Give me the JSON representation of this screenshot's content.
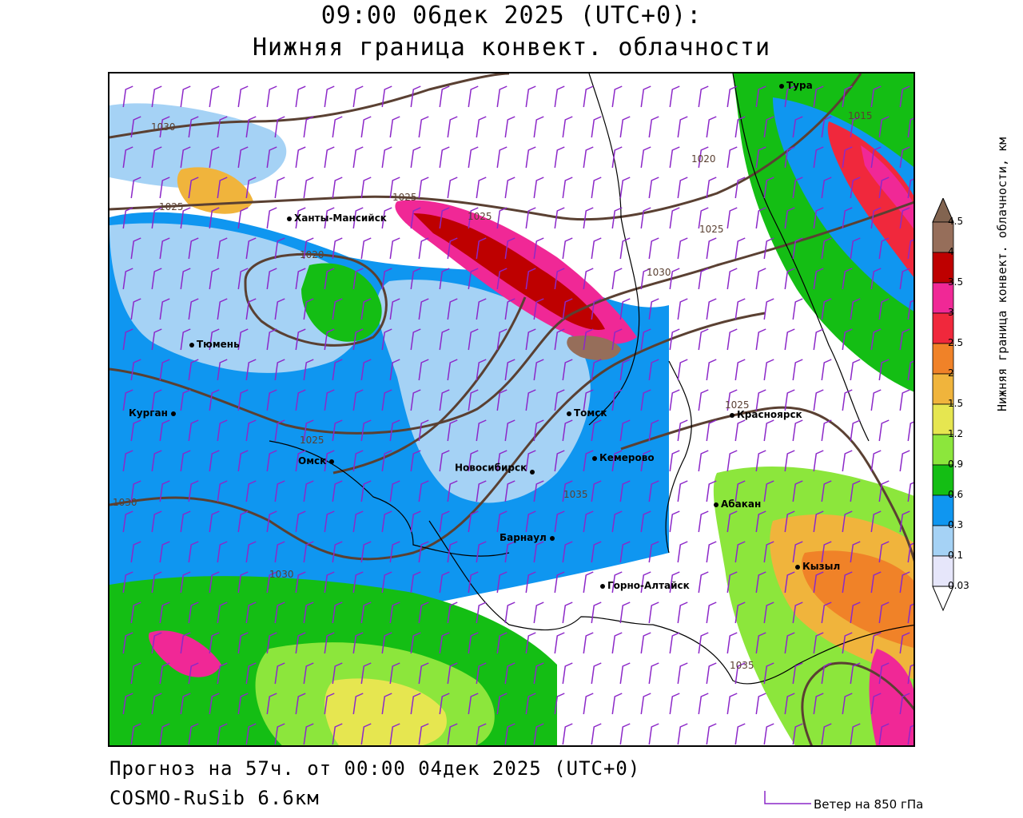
{
  "header": {
    "title_line1": "09:00 06дек 2025 (UTC+0):",
    "title_line2": "Нижняя граница конвект. облачности"
  },
  "footer": {
    "forecast": "Прогноз на 57ч. от 00:00 04дек 2025 (UTC+0)",
    "model": "COSMO-RuSib 6.6км",
    "wind_legend": "Ветер на 850 гПа"
  },
  "legend": {
    "title": "Нижняя граница конвект. облачности, км",
    "levels": [
      "0.03",
      "0.1",
      "0.3",
      "0.6",
      "0.9",
      "1.2",
      "1.5",
      "2",
      "2.5",
      "3",
      "3.5",
      "4",
      "4.5"
    ],
    "colors": [
      "#e6e6fa",
      "#a5d2f5",
      "#0f96f0",
      "#14be14",
      "#8ce63c",
      "#e6e650",
      "#f0b43c",
      "#f08228",
      "#f0283c",
      "#f02896",
      "#be0000",
      "#966e5a",
      "#826450"
    ]
  },
  "cities": [
    {
      "name": "Тура"
    },
    {
      "name": "Ханты-Мансийск"
    },
    {
      "name": "Тюмень"
    },
    {
      "name": "Курган"
    },
    {
      "name": "Омск"
    },
    {
      "name": "Томск"
    },
    {
      "name": "Красноярск"
    },
    {
      "name": "Кемерово"
    },
    {
      "name": "Новосибирск"
    },
    {
      "name": "Абакан"
    },
    {
      "name": "Барнаул"
    },
    {
      "name": "Кызыл"
    },
    {
      "name": "Горно-Алтайск"
    }
  ],
  "isobars": {
    "labels": [
      "1030",
      "1025",
      "1025",
      "1020",
      "1025",
      "1020",
      "1025",
      "1030",
      "1015",
      "1025",
      "1035",
      "1025",
      "1030",
      "1030",
      "1035"
    ],
    "color": "#5a4032"
  },
  "wind_barb_color": "#8c28c8"
}
